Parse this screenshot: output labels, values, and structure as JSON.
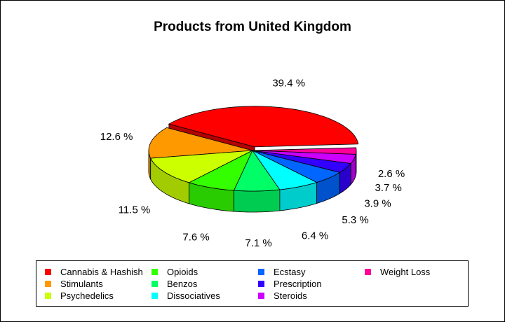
{
  "chart_data": {
    "type": "pie",
    "title": "Products from United Kingdom",
    "slices": [
      {
        "label": "Cannabis & Hashish",
        "value": 39.4,
        "pct_label": "39.4 %",
        "color": "#ff0000"
      },
      {
        "label": "Stimulants",
        "value": 12.6,
        "pct_label": "12.6 %",
        "color": "#ff9900"
      },
      {
        "label": "Psychedelics",
        "value": 11.5,
        "pct_label": "11.5 %",
        "color": "#ccff00"
      },
      {
        "label": "Opioids",
        "value": 7.6,
        "pct_label": "7.6 %",
        "color": "#33ff00"
      },
      {
        "label": "Benzos",
        "value": 7.1,
        "pct_label": "7.1 %",
        "color": "#00ff66"
      },
      {
        "label": "Dissociatives",
        "value": 6.4,
        "pct_label": "6.4 %",
        "color": "#00ffff"
      },
      {
        "label": "Ecstasy",
        "value": 5.3,
        "pct_label": "5.3 %",
        "color": "#0066ff"
      },
      {
        "label": "Prescription",
        "value": 3.9,
        "pct_label": "3.9 %",
        "color": "#3300ff"
      },
      {
        "label": "Steroids",
        "value": 3.7,
        "pct_label": "3.7 %",
        "color": "#cc00ff"
      },
      {
        "label": "Weight Loss",
        "value": 2.6,
        "pct_label": "2.6 %",
        "color": "#ff0099"
      }
    ],
    "legend_placement": "bottom"
  }
}
